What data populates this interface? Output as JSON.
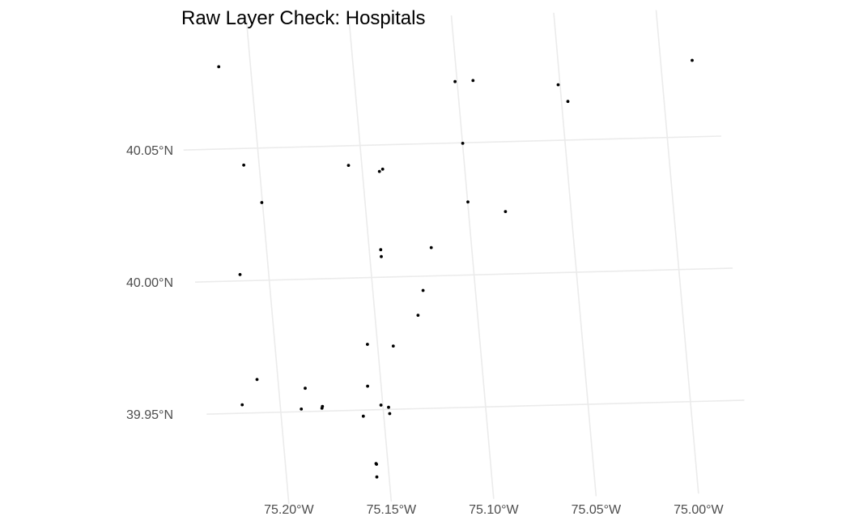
{
  "chart_data": {
    "type": "scatter",
    "title": "Raw Layer Check: Hospitals",
    "xlabel": "",
    "ylabel": "",
    "xlim": [
      -75.2362,
      -74.9737
    ],
    "ylim": [
      39.9152,
      40.0982
    ],
    "grid": true,
    "legend": "none",
    "point_color": "#000000",
    "grid_color": "#ebebeb",
    "x_ticks": [
      {
        "value": -75.2,
        "label": "75.20°W"
      },
      {
        "value": -75.15,
        "label": "75.15°W"
      },
      {
        "value": -75.1,
        "label": "75.10°W"
      },
      {
        "value": -75.05,
        "label": "75.05°W"
      },
      {
        "value": -75.0,
        "label": "75.00°W"
      }
    ],
    "y_ticks": [
      {
        "value": 40.05,
        "label": "40.05°N"
      },
      {
        "value": 40.0,
        "label": "40.00°N"
      },
      {
        "value": 39.95,
        "label": "39.95°N"
      }
    ],
    "points": [
      {
        "x": -75.2155,
        "y": 40.0811
      },
      {
        "x": -75.2075,
        "y": 40.0437
      },
      {
        "x": -75.2003,
        "y": 40.0294
      },
      {
        "x": -75.214,
        "y": 40.0024
      },
      {
        "x": -75.1565,
        "y": 40.0426
      },
      {
        "x": -75.1417,
        "y": 40.04
      },
      {
        "x": -75.14,
        "y": 40.0408
      },
      {
        "x": -75.101,
        "y": 40.0732
      },
      {
        "x": -75.0922,
        "y": 40.0734
      },
      {
        "x": -75.0999,
        "y": 40.0498
      },
      {
        "x": -75.0999,
        "y": 40.0276
      },
      {
        "x": -75.082,
        "y": 40.0236
      },
      {
        "x": -75.0509,
        "y": 40.071
      },
      {
        "x": -75.0469,
        "y": 40.0646
      },
      {
        "x": -74.9846,
        "y": 40.0789
      },
      {
        "x": -75.1444,
        "y": 40.0104
      },
      {
        "x": -75.1444,
        "y": 40.0078
      },
      {
        "x": -75.1197,
        "y": 40.0107
      },
      {
        "x": -75.1255,
        "y": 39.9946
      },
      {
        "x": -75.129,
        "y": 39.9853
      },
      {
        "x": -75.1549,
        "y": 39.9748
      },
      {
        "x": -75.1424,
        "y": 39.9739
      },
      {
        "x": -75.2102,
        "y": 39.9626
      },
      {
        "x": -75.1871,
        "y": 39.9588
      },
      {
        "x": -75.1566,
        "y": 39.959
      },
      {
        "x": -75.2185,
        "y": 39.9532
      },
      {
        "x": -75.1899,
        "y": 39.951
      },
      {
        "x": -75.1798,
        "y": 39.9511
      },
      {
        "x": -75.1795,
        "y": 39.9518
      },
      {
        "x": -75.1509,
        "y": 39.9517
      },
      {
        "x": -75.1473,
        "y": 39.9508
      },
      {
        "x": -75.147,
        "y": 39.9484
      },
      {
        "x": -75.16,
        "y": 39.9477
      },
      {
        "x": -75.1558,
        "y": 39.9297
      },
      {
        "x": -75.1556,
        "y": 39.9294
      },
      {
        "x": -75.156,
        "y": 39.9246
      }
    ]
  }
}
